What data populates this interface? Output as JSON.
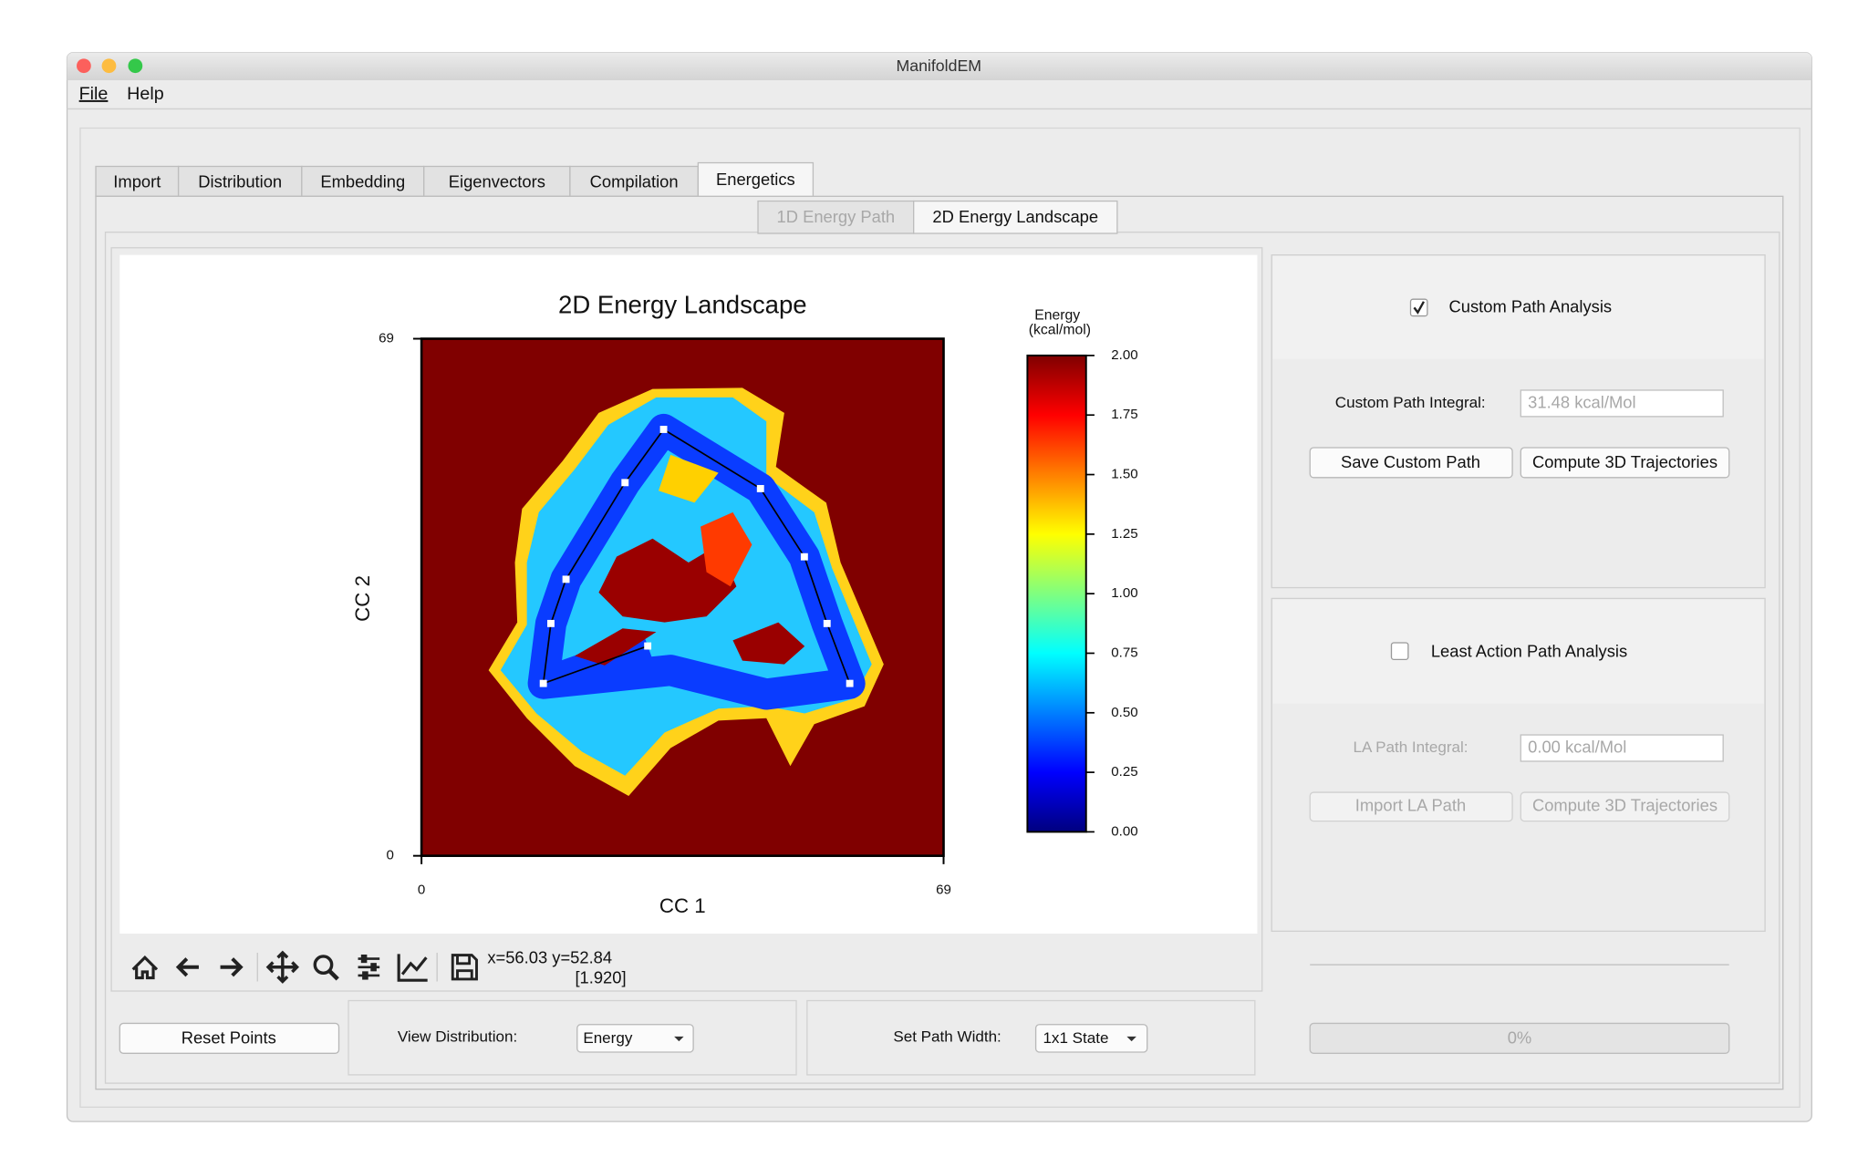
{
  "window": {
    "title": "ManifoldEM"
  },
  "menu": [
    "File",
    "Help"
  ],
  "tabs": [
    "Import",
    "Distribution",
    "Embedding",
    "Eigenvectors",
    "Compilation",
    "Energetics"
  ],
  "active_tab": 5,
  "subtabs": [
    "1D Energy Path",
    "2D Energy Landscape"
  ],
  "active_subtab": 1,
  "chart_data": {
    "type": "heatmap",
    "title": "2D Energy Landscape",
    "x_label": "CC 1",
    "y_label": "CC 2",
    "xlim": [
      0,
      69
    ],
    "ylim": [
      0,
      69
    ],
    "xticks": [
      0,
      69
    ],
    "yticks": [
      0,
      69
    ],
    "colorbar_title": "Energy",
    "colorbar_units": "(kcal/mol)",
    "clim": [
      0,
      2
    ],
    "cticks": [
      {
        "value": 0,
        "label": "0.00"
      },
      {
        "value": 0.25,
        "label": "0.25"
      },
      {
        "value": 0.5,
        "label": "0.50"
      },
      {
        "value": 0.75,
        "label": "0.75"
      },
      {
        "value": 1,
        "label": "1.00"
      },
      {
        "value": 1.25,
        "label": "1.25"
      },
      {
        "value": 1.5,
        "label": "1.50"
      },
      {
        "value": 1.75,
        "label": "1.75"
      },
      {
        "value": 2,
        "label": "2.00"
      }
    ],
    "path": {
      "color": "#000000",
      "x": [
        29.9,
        16.1,
        17.1,
        19.1,
        26.9,
        32.0,
        44.8,
        50.6,
        53.6,
        56.6
      ],
      "y": [
        28.0,
        23.0,
        31.0,
        36.9,
        49.8,
        56.9,
        49.0,
        39.9,
        31.0,
        23.0
      ]
    }
  },
  "toolbar": {
    "coords": "x=56.03 y=52.84",
    "value": "[1.920]"
  },
  "bottom": {
    "reset": "Reset Points",
    "view_label": "View Distribution:",
    "view_value": "Energy",
    "width_label": "Set Path Width:",
    "width_value": "1x1 State"
  },
  "custom": {
    "label": "Custom Path Analysis",
    "checked": true,
    "integral_label": "Custom Path Integral:",
    "integral_value": "31.48 kcal/Mol",
    "save": "Save Custom Path",
    "compute": "Compute 3D Trajectories"
  },
  "least_action": {
    "label": "Least Action Path Analysis",
    "checked": false,
    "integral_label": "LA Path Integral:",
    "integral_value": "0.00 kcal/Mol",
    "import": "Import LA Path",
    "compute": "Compute 3D Trajectories"
  },
  "progress": "0%"
}
